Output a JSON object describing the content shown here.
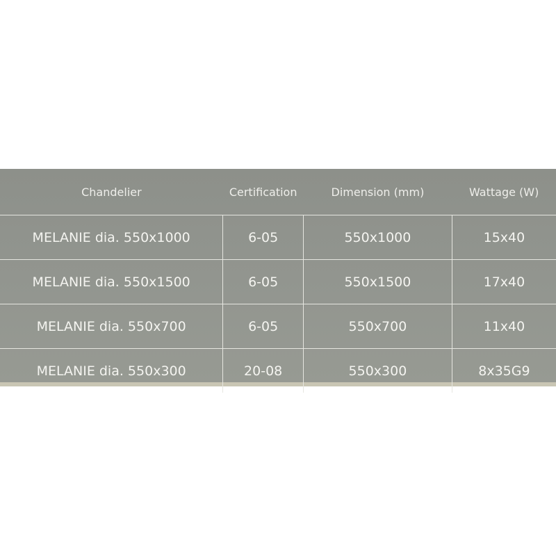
{
  "table": {
    "headers": [
      "Chandelier",
      "Certification",
      "Dimension (mm)",
      "Wattage (W)"
    ],
    "rows": [
      [
        "MELANIE dia. 550x1000",
        "6-05",
        "550x1000",
        "15x40"
      ],
      [
        "MELANIE dia. 550x1500",
        "6-05",
        "550x1500",
        "17x40"
      ],
      [
        "MELANIE dia. 550x700",
        "6-05",
        "550x700",
        "11x40"
      ],
      [
        "MELANIE dia. 550x300",
        "20-08",
        "550x300",
        "8x35G9"
      ]
    ]
  },
  "colors": {
    "panel": "#92958f",
    "text": "#f4f4f0",
    "grid": "#e6e6e0"
  }
}
